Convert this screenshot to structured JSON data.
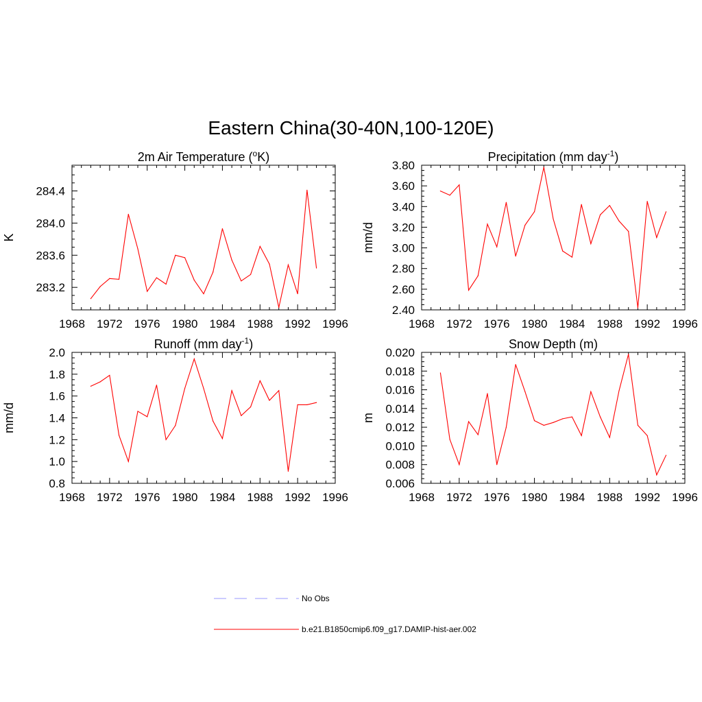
{
  "figure": {
    "title": "Eastern China(30-40N,100-120E)"
  },
  "legend": {
    "items": [
      {
        "label": "No Obs",
        "color": "#9999ff",
        "style": "dashed"
      },
      {
        "label": "b.e21.B1850cmip6.f09_g17.DAMIP-hist-aer.002",
        "color": "#ff0000",
        "style": "solid"
      }
    ]
  },
  "chart_data": [
    {
      "type": "line",
      "title": "2m Air Temperature (oK)",
      "title_parts": {
        "pre": "2m Air Temperature (",
        "sup": "o",
        "post": "K)"
      },
      "xlabel": "",
      "ylabel": "K",
      "xlim": [
        1968,
        1996
      ],
      "ylim": [
        282.92,
        284.72
      ],
      "xticks": [
        "1968",
        "1972",
        "1976",
        "1980",
        "1984",
        "1988",
        "1992",
        "1996"
      ],
      "yticks": [
        "283.2",
        "283.6",
        "284.0",
        "284.4"
      ],
      "grid": false,
      "series": [
        {
          "color": "#ff0000",
          "x": [
            1970,
            1971,
            1972,
            1973,
            1974,
            1975,
            1976,
            1977,
            1978,
            1979,
            1980,
            1981,
            1982,
            1983,
            1984,
            1985,
            1986,
            1987,
            1988,
            1989,
            1990,
            1991,
            1992,
            1993,
            1994
          ],
          "y": [
            283.06,
            283.21,
            283.31,
            283.3,
            284.11,
            283.68,
            283.15,
            283.32,
            283.24,
            283.6,
            283.57,
            283.29,
            283.12,
            283.39,
            283.93,
            283.54,
            283.28,
            283.36,
            283.71,
            283.49,
            282.95,
            283.48,
            283.12,
            284.41,
            283.44
          ]
        }
      ]
    },
    {
      "type": "line",
      "title": "Precipitation (mm day-1)",
      "title_parts": {
        "pre": "Precipitation (mm day",
        "sup": "-1",
        "post": ")"
      },
      "xlabel": "",
      "ylabel": "mm/d",
      "xlim": [
        1968,
        1996
      ],
      "ylim": [
        2.4,
        3.8
      ],
      "xticks": [
        "1968",
        "1972",
        "1976",
        "1980",
        "1984",
        "1988",
        "1992",
        "1996"
      ],
      "yticks": [
        "2.40",
        "2.60",
        "2.80",
        "3.00",
        "3.20",
        "3.40",
        "3.60",
        "3.80"
      ],
      "grid": false,
      "series": [
        {
          "color": "#ff0000",
          "x": [
            1970,
            1971,
            1972,
            1973,
            1974,
            1975,
            1976,
            1977,
            1978,
            1979,
            1980,
            1981,
            1982,
            1983,
            1984,
            1985,
            1986,
            1987,
            1988,
            1989,
            1990,
            1991,
            1992,
            1993,
            1994
          ],
          "y": [
            3.55,
            3.51,
            3.61,
            2.59,
            2.73,
            3.23,
            3.01,
            3.44,
            2.92,
            3.22,
            3.35,
            3.78,
            3.28,
            2.97,
            2.91,
            3.42,
            3.04,
            3.32,
            3.41,
            3.26,
            3.16,
            2.42,
            3.45,
            3.1,
            3.35
          ]
        }
      ]
    },
    {
      "type": "line",
      "title": "Runoff (mm day-1)",
      "title_parts": {
        "pre": "Runoff (mm day",
        "sup": "-1",
        "post": ")"
      },
      "xlabel": "",
      "ylabel": "mm/d",
      "xlim": [
        1968,
        1996
      ],
      "ylim": [
        0.8,
        2.0
      ],
      "xticks": [
        "1968",
        "1972",
        "1976",
        "1980",
        "1984",
        "1988",
        "1992",
        "1996"
      ],
      "yticks": [
        "0.8",
        "1.0",
        "1.2",
        "1.4",
        "1.6",
        "1.8",
        "2.0"
      ],
      "grid": false,
      "series": [
        {
          "color": "#ff0000",
          "x": [
            1970,
            1971,
            1972,
            1973,
            1974,
            1975,
            1976,
            1977,
            1978,
            1979,
            1980,
            1981,
            1982,
            1983,
            1984,
            1985,
            1986,
            1987,
            1988,
            1989,
            1990,
            1991,
            1992,
            1993,
            1994
          ],
          "y": [
            1.69,
            1.73,
            1.79,
            1.24,
            1.0,
            1.46,
            1.41,
            1.7,
            1.2,
            1.33,
            1.67,
            1.94,
            1.67,
            1.37,
            1.21,
            1.65,
            1.42,
            1.5,
            1.74,
            1.56,
            1.65,
            0.91,
            1.52,
            1.52,
            1.54
          ]
        }
      ]
    },
    {
      "type": "line",
      "title": "Snow Depth (m)",
      "title_parts": {
        "pre": "Snow Depth (m)",
        "sup": "",
        "post": ""
      },
      "xlabel": "",
      "ylabel": "m",
      "xlim": [
        1968,
        1996
      ],
      "ylim": [
        0.006,
        0.02
      ],
      "xticks": [
        "1968",
        "1972",
        "1976",
        "1980",
        "1984",
        "1988",
        "1992",
        "1996"
      ],
      "yticks": [
        "0.006",
        "0.008",
        "0.010",
        "0.012",
        "0.014",
        "0.016",
        "0.018",
        "0.020"
      ],
      "grid": false,
      "series": [
        {
          "color": "#ff0000",
          "x": [
            1970,
            1971,
            1972,
            1973,
            1974,
            1975,
            1976,
            1977,
            1978,
            1979,
            1980,
            1981,
            1982,
            1983,
            1984,
            1985,
            1986,
            1987,
            1988,
            1989,
            1990,
            1991,
            1992,
            1993,
            1994
          ],
          "y": [
            0.0178,
            0.0107,
            0.008,
            0.0126,
            0.0112,
            0.0156,
            0.008,
            0.012,
            0.0187,
            0.0158,
            0.0127,
            0.0122,
            0.0125,
            0.0129,
            0.0131,
            0.0111,
            0.0158,
            0.0131,
            0.0109,
            0.0159,
            0.0198,
            0.0122,
            0.0111,
            0.0069,
            0.009
          ]
        }
      ]
    }
  ]
}
